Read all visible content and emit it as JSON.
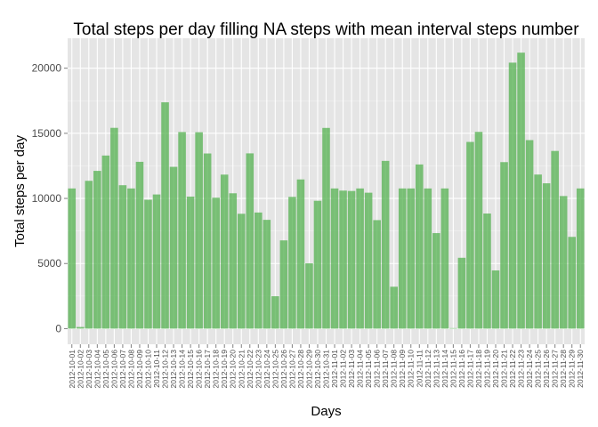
{
  "chart_data": {
    "type": "bar",
    "title": "Total steps per day filling NA steps with mean interval steps number",
    "xlabel": "Days",
    "ylabel": "Total steps per day",
    "ylim": [
      -1200,
      22300
    ],
    "yticks": [
      0,
      5000,
      10000,
      15000,
      20000
    ],
    "grid": true,
    "bar_color": "#4daf4a",
    "panel_color": "#e5e5e5",
    "categories": [
      "2012-10-01",
      "2012-10-02",
      "2012-10-03",
      "2012-10-04",
      "2012-10-05",
      "2012-10-06",
      "2012-10-07",
      "2012-10-08",
      "2012-10-09",
      "2012-10-10",
      "2012-10-11",
      "2012-10-12",
      "2012-10-13",
      "2012-10-14",
      "2012-10-15",
      "2012-10-16",
      "2012-10-17",
      "2012-10-18",
      "2012-10-19",
      "2012-10-20",
      "2012-10-21",
      "2012-10-22",
      "2012-10-23",
      "2012-10-24",
      "2012-10-25",
      "2012-10-26",
      "2012-10-27",
      "2012-10-28",
      "2012-10-29",
      "2012-10-30",
      "2012-10-31",
      "2012-11-01",
      "2012-11-02",
      "2012-11-03",
      "2012-11-04",
      "2012-11-05",
      "2012-11-06",
      "2012-11-07",
      "2012-11-08",
      "2012-11-09",
      "2012-11-10",
      "2012-11-11",
      "2012-11-12",
      "2012-11-13",
      "2012-11-14",
      "2012-11-15",
      "2012-11-16",
      "2012-11-17",
      "2012-11-18",
      "2012-11-19",
      "2012-11-20",
      "2012-11-21",
      "2012-11-22",
      "2012-11-23",
      "2012-11-24",
      "2012-11-25",
      "2012-11-26",
      "2012-11-27",
      "2012-11-28",
      "2012-11-29",
      "2012-11-30"
    ],
    "values": [
      10766,
      126,
      11352,
      12116,
      13294,
      15420,
      11015,
      10766,
      12811,
      9900,
      10304,
      17382,
      12426,
      15098,
      10139,
      15084,
      13452,
      10056,
      11829,
      10395,
      8821,
      13460,
      8918,
      8355,
      2492,
      6778,
      10119,
      11458,
      5018,
      9819,
      15414,
      10766,
      10600,
      10571,
      10766,
      10439,
      8334,
      12883,
      3219,
      10766,
      10766,
      12608,
      10765,
      7336,
      10766,
      41,
      5441,
      14339,
      15110,
      8841,
      4472,
      12787,
      20427,
      21194,
      14478,
      11834,
      11162,
      13646,
      10183,
      7047,
      10766
    ]
  }
}
